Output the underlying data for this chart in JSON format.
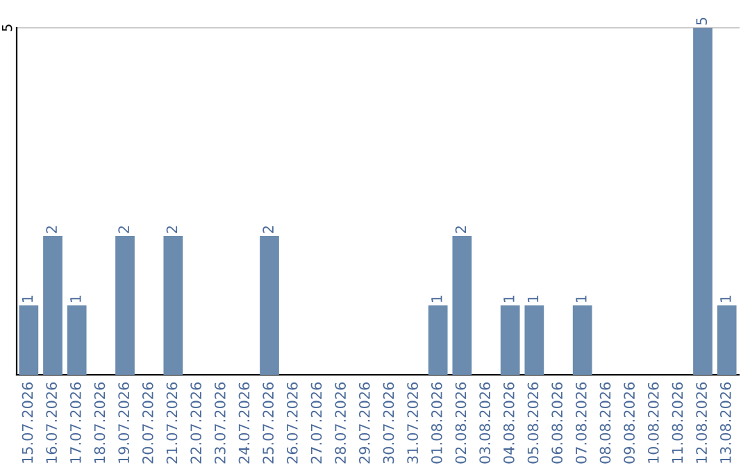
{
  "chart_data": {
    "type": "bar",
    "categories": [
      "15.07.2026",
      "16.07.2026",
      "17.07.2026",
      "18.07.2026",
      "19.07.2026",
      "20.07.2026",
      "21.07.2026",
      "22.07.2026",
      "23.07.2026",
      "24.07.2026",
      "25.07.2026",
      "26.07.2026",
      "27.07.2026",
      "28.07.2026",
      "29.07.2026",
      "30.07.2026",
      "31.07.2026",
      "01.08.2026",
      "02.08.2026",
      "03.08.2026",
      "04.08.2026",
      "05.08.2026",
      "06.08.2026",
      "07.08.2026",
      "08.08.2026",
      "09.08.2026",
      "10.08.2026",
      "11.08.2026",
      "12.08.2026",
      "13.08.2026"
    ],
    "values": [
      1,
      2,
      1,
      0,
      2,
      0,
      2,
      0,
      0,
      0,
      2,
      0,
      0,
      0,
      0,
      0,
      0,
      1,
      2,
      0,
      1,
      1,
      0,
      1,
      0,
      0,
      0,
      0,
      5,
      1
    ],
    "value_labels": [
      "1",
      "2",
      "1",
      null,
      "2",
      null,
      "2",
      null,
      null,
      null,
      "2",
      null,
      null,
      null,
      null,
      null,
      null,
      "1",
      "2",
      null,
      "1",
      "1",
      null,
      "1",
      null,
      null,
      null,
      null,
      "5",
      "1"
    ],
    "color": "#6b8caf",
    "ylim": [
      0,
      5
    ],
    "yticks": [
      5
    ],
    "ref_lines": [
      {
        "axis": "y",
        "value": 5,
        "color": "#cccccc"
      }
    ]
  }
}
